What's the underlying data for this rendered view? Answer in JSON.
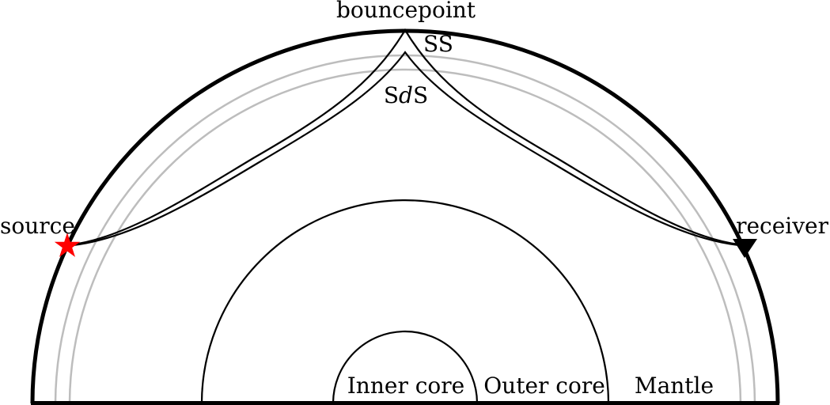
{
  "labels": {
    "bouncepoint": "bouncepoint",
    "ss": "SS",
    "sds_prefix": "S",
    "sds_italic": "d",
    "sds_suffix": "S",
    "source": "source",
    "receiver": "receiver",
    "inner_core": "Inner core",
    "outer_core": "Outer core",
    "mantle": "Mantle"
  },
  "colors": {
    "outline": "#000000",
    "discontinuity": "#bdbdbd",
    "source_star": "#ff0000",
    "receiver_triangle": "#000000"
  },
  "icons": {
    "source": "star-icon",
    "receiver": "triangle-down-icon"
  }
}
